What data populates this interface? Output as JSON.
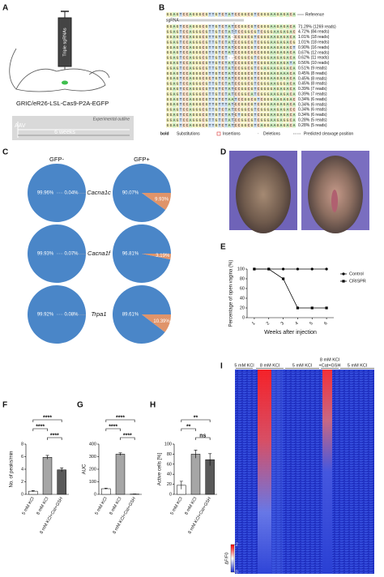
{
  "panel_labels": [
    "A",
    "B",
    "C",
    "D",
    "E",
    "F",
    "G",
    "H",
    "I"
  ],
  "panel_a": {
    "syringe_label": "Triple sgRNAs",
    "mouse_label": "GRIC/eR26-LSL-Cas9-P2A-EGFP",
    "outline_title": "Experimental outline",
    "injection": "AAV",
    "duration": "6 weeks"
  },
  "panel_b": {
    "reference": "GGAGTCCAGGGCGTTGTCTATCCGGCGTCGGGAAGAGACA",
    "reference_label": "Reference",
    "sgrna_label": "sgRNA",
    "reads": [
      {
        "sequence": "GGAGTCCAGGGCGTTGTCTATCCGGCGTCGGGAAGAGACA",
        "label": "71.29% (1269 reads)"
      },
      {
        "sequence": "GGAGTCCAGGGCGTTGTCTATTCCGGCGTCGGGAAGAGAC",
        "label": "4.72% (84 reads)"
      },
      {
        "sequence": "GGAGTCCAGGGCGTTGTCTA-CCGGCGTCGGGAAGAGACA",
        "label": "1.01% (18 reads)"
      },
      {
        "sequence": "GGAGTCCAGGGCGTTGTCTATCCGGCGTCGGGAAGAGACG",
        "label": "1.01% (18 reads)"
      },
      {
        "sequence": "GGAGTCCAGGGCGTTGTCTATCCGGCGTCGGGAAGAGACT",
        "label": "0.90% (16 reads)"
      },
      {
        "sequence": "GGAGTCCAGGGCGTTGTCTATCCGGCGCCGGGAAGAGACA",
        "label": "0.67% (12 reads)"
      },
      {
        "sequence": "GGAGTCCAGGGCGTTGTCT--CCGGCGTCGGGAAGAGACA",
        "label": "0.62% (11 reads)"
      },
      {
        "sequence": "GGAGTCCAGGGCGTTGTCTATCCGGCGTCGGGAAGAGATA",
        "label": "0.56% (10 reads)"
      },
      {
        "sequence": "GGAGTCCAGGGCGTTGTCTATCCGGCGTCGAGAAGAGACA",
        "label": "0.51% (9 reads)"
      },
      {
        "sequence": "GGAGTCCAGGGCGTTGTCTATCCGGCGTCGGGAAGAAACA",
        "label": "0.45% (8 reads)"
      },
      {
        "sequence": "GGAGTCCAGGGCGCTGTCTATCCGGCGTCGGGAAGAGACA",
        "label": "0.45% (8 reads)"
      },
      {
        "sequence": "GGAGTCCAGGGCGTTGTCTATCCGGCGTCGGGAAGGGACA",
        "label": "0.45% (8 reads)"
      },
      {
        "sequence": "GGAGTCCAGGGCGTTGTCTATCCGGCGTCGGGGAGAGACA",
        "label": "0.39% (7 reads)"
      },
      {
        "sequence": "GGAGTCCAGGGCGTTGTCTATCCGGCATCGGGAAGAGACA",
        "label": "0.39% (7 reads)"
      },
      {
        "sequence": "GGAGTCCAGGGCGTTGTCTAATCCGGCGTCGGGAAGAGAC",
        "label": "0.34% (6 reads)"
      },
      {
        "sequence": "GGAGTCCAGGGCGTTGTTTATCCGGCGTCGGGAAGAGACA",
        "label": "0.34% (6 reads)"
      },
      {
        "sequence": "GGAGTCCAGGGCGTTGTCTATCCGGCGTCGGGAAGAGACC",
        "label": "0.34% (6 reads)"
      },
      {
        "sequence": "GGAGTCCAGGGCGTTGTCTATCTGGCGTCGGGAAGAGACA",
        "label": "0.34% (6 reads)"
      },
      {
        "sequence": "GGAGTCCAGGGCGTTGTCTATCCGGCGTCGGGAAGAGGCA",
        "label": "0.28% (5 reads)"
      },
      {
        "sequence": "GGAGTCCAGGGCGTTGTCTATCCGGCGTCAGGAAGAGACA",
        "label": "0.28% (5 reads)"
      }
    ],
    "legend": [
      "bold",
      "Substitutions",
      "Insertions",
      "Deletions",
      "Predicted cleavage position"
    ]
  },
  "panel_c": {
    "columns": [
      "GFP-",
      "GFP+"
    ],
    "colors": [
      "#4a86c8",
      "#e0946a"
    ],
    "rows": [
      {
        "gene": "Cacna1c",
        "pies": [
          {
            "values": [
              99.96,
              0.04
            ],
            "value_labels": [
              "99.96%",
              "0.04%"
            ]
          },
          {
            "values": [
              90.07,
              9.93
            ],
            "value_labels": [
              "90.07%",
              "9.93%"
            ]
          }
        ]
      },
      {
        "gene": "Cacna1f",
        "pies": [
          {
            "values": [
              99.93,
              0.07
            ],
            "value_labels": [
              "99.93%",
              "0.07%"
            ]
          },
          {
            "values": [
              96.81,
              3.19
            ],
            "value_labels": [
              "96.81%",
              "3.19%"
            ]
          }
        ]
      },
      {
        "gene": "Trpa1",
        "pies": [
          {
            "values": [
              99.92,
              0.08
            ],
            "value_labels": [
              "99.92%",
              "0.08%"
            ]
          },
          {
            "values": [
              89.61,
              10.39
            ],
            "value_labels": [
              "89.61%",
              "10.39%"
            ]
          }
        ]
      }
    ]
  },
  "chart_data": [
    {
      "type": "line",
      "ylabel": "Percentage of open vagina (%)",
      "xlabel": "Weeks after injection",
      "x": [
        1,
        2,
        3,
        4,
        5,
        6
      ],
      "xticks": [
        1,
        2,
        3,
        4,
        5,
        6
      ],
      "xlim": [
        0.5,
        6.5
      ],
      "ylim": [
        0,
        100
      ],
      "yticks": [
        0,
        20,
        40,
        60,
        80,
        100
      ],
      "legend": "upper right",
      "series": [
        {
          "name": "Control",
          "color": "#000000",
          "marker": "circle",
          "values": [
            100,
            100,
            100,
            100,
            100,
            100
          ]
        },
        {
          "name": "CRISPR",
          "color": "#000000",
          "marker": "square",
          "values": [
            100,
            100,
            80,
            20,
            20,
            20
          ]
        }
      ]
    },
    {
      "type": "bar",
      "ylabel": "No. of peaks/min",
      "categories": [
        "5 mM KCl",
        "8 mM KCl",
        "8 mM KCl+Cat+GSH"
      ],
      "values": [
        0.5,
        5.9,
        3.9
      ],
      "errors": [
        0.1,
        0.3,
        0.3
      ],
      "colors": [
        "#ffffff",
        "#a6a6a6",
        "#595959"
      ],
      "ylim": [
        0,
        8
      ],
      "yticks": [
        0,
        2,
        4,
        6,
        8
      ],
      "significance": [
        {
          "pair": [
            0,
            2
          ],
          "label": "****"
        },
        {
          "pair": [
            0,
            1
          ],
          "label": "****"
        },
        {
          "pair": [
            1,
            2
          ],
          "label": "****"
        }
      ]
    },
    {
      "type": "bar",
      "ylabel": "AUC",
      "categories": [
        "5 mM KCl",
        "8 mM KCl",
        "8 mM KCl+Cat+GSH"
      ],
      "values": [
        45,
        320,
        2
      ],
      "errors": [
        5,
        10,
        1
      ],
      "colors": [
        "#ffffff",
        "#a6a6a6",
        "#595959"
      ],
      "ylim": [
        0,
        400
      ],
      "yticks": [
        0,
        100,
        200,
        300,
        400
      ],
      "significance": [
        {
          "pair": [
            0,
            2
          ],
          "label": "****"
        },
        {
          "pair": [
            0,
            1
          ],
          "label": "****"
        },
        {
          "pair": [
            1,
            2
          ],
          "label": "****"
        }
      ]
    },
    {
      "type": "bar",
      "ylabel": "Active cells [%]",
      "categories": [
        "5 mM KCl",
        "8 mM KCl",
        "8 mM KCl+Cat+GSH"
      ],
      "values": [
        18,
        80,
        69
      ],
      "errors": [
        8,
        8,
        12
      ],
      "colors": [
        "#ffffff",
        "#a6a6a6",
        "#595959"
      ],
      "ylim": [
        0,
        100
      ],
      "yticks": [
        0,
        20,
        40,
        60,
        80,
        100
      ],
      "significance": [
        {
          "pair": [
            0,
            2
          ],
          "label": "**"
        },
        {
          "pair": [
            0,
            1
          ],
          "label": "**"
        },
        {
          "pair": [
            1,
            2
          ],
          "label": "ns"
        }
      ]
    }
  ],
  "panel_i": {
    "conditions": [
      {
        "lines": [
          "5 mM KCl"
        ]
      },
      {
        "lines": [
          "8 mM KCl"
        ]
      },
      {
        "lines": [
          "5 mM KCl"
        ]
      },
      {
        "lines": [
          "8 mM KCl",
          "+Cat+GSH"
        ]
      },
      {
        "lines": [
          "5 mM KCl"
        ]
      }
    ],
    "colorbar_label": "ΔF/F0",
    "colorbar_ticks": [
      0,
      2
    ]
  }
}
